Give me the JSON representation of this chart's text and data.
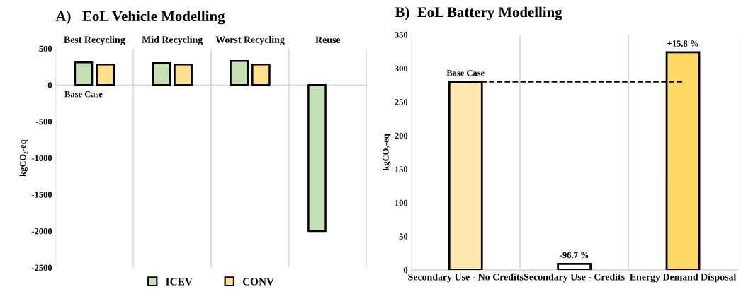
{
  "chart_data": [
    {
      "type": "bar",
      "title": "A)   EoL Vehicle Modelling",
      "ylabel": "kgCO₂-eq",
      "categories": [
        "Best Recycling",
        "Mid Recycling",
        "Worst Recycling",
        "Reuse"
      ],
      "series": [
        {
          "name": "ICEV",
          "color": "#c5e0b4",
          "values": [
            310,
            300,
            330,
            -2000
          ]
        },
        {
          "name": "CONV",
          "color": "#ffe08a",
          "values": [
            280,
            280,
            280,
            null
          ]
        }
      ],
      "ylim": [
        -2500,
        500
      ],
      "yticks": [
        -2500,
        -2000,
        -1500,
        -1000,
        -500,
        0,
        500
      ],
      "annotations": [
        {
          "text": "Base Case",
          "x": "Best Recycling",
          "y": 0
        }
      ],
      "legend": "bottom"
    },
    {
      "type": "bar",
      "title": "B)  EoL Battery Modelling",
      "ylabel": "kgCO₂-eq",
      "categories": [
        "Secondary Use - No Credits",
        "Secondary Use - Credits",
        "Energy Demand Disposal"
      ],
      "values": [
        280,
        9,
        324
      ],
      "colors": [
        "#fde9b0",
        "#ffffff",
        "#ffd966"
      ],
      "annotations": [
        {
          "text": "Base Case",
          "x": "Secondary Use - No Credits",
          "y": 280
        },
        {
          "text": "-96.7 %",
          "x": "Secondary Use - Credits",
          "y": 9
        },
        {
          "text": "+15.8 %",
          "x": "Energy Demand Disposal",
          "y": 324
        }
      ],
      "ylim": [
        0,
        350
      ],
      "yticks": [
        0,
        50,
        100,
        150,
        200,
        250,
        300,
        350
      ],
      "ref_lines": [
        {
          "axis": "y",
          "value": 280,
          "line_style": "dashed",
          "color": "#000000"
        }
      ]
    }
  ]
}
